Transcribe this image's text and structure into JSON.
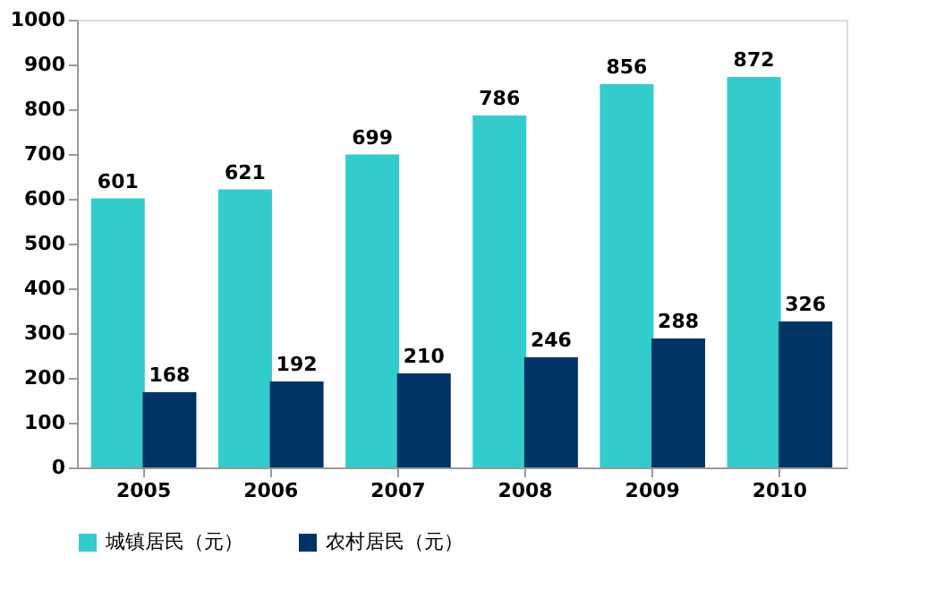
{
  "chart_data": {
    "type": "bar",
    "categories": [
      "2005",
      "2006",
      "2007",
      "2008",
      "2009",
      "2010"
    ],
    "series": [
      {
        "name": "城镇居民（元）",
        "color": "#33cccc",
        "values": [
          601,
          621,
          699,
          786,
          856,
          872
        ]
      },
      {
        "name": "农村居民（元）",
        "color": "#003366",
        "values": [
          168,
          192,
          210,
          246,
          288,
          326
        ]
      }
    ],
    "ylim": [
      0,
      1000
    ],
    "yticks": [
      0,
      100,
      200,
      300,
      400,
      500,
      600,
      700,
      800,
      900,
      1000
    ],
    "grid": false,
    "legend": "bottom",
    "data_labels": true
  }
}
